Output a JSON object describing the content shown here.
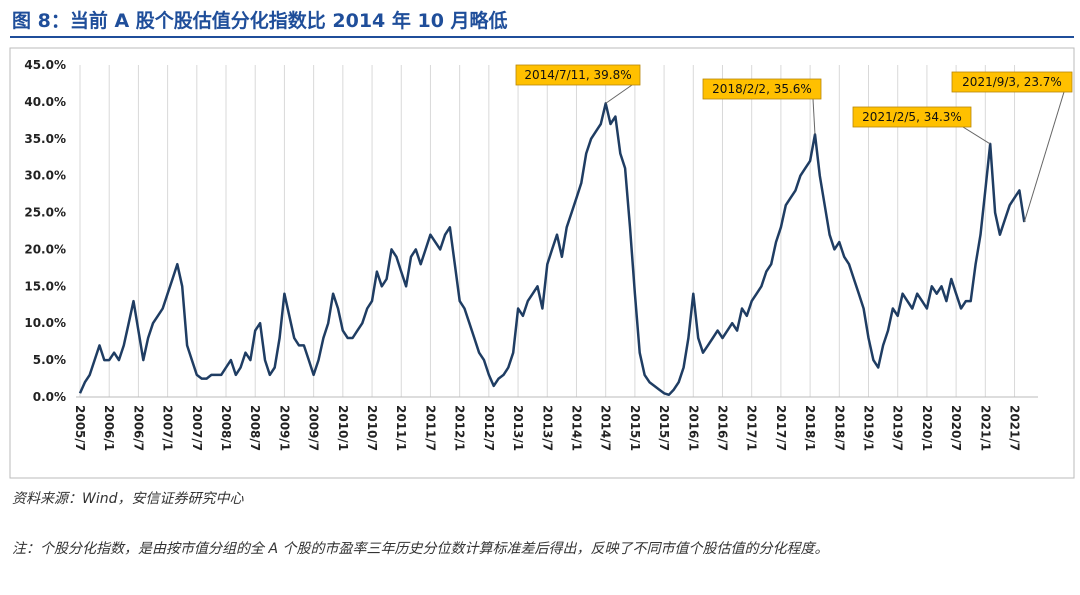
{
  "chart_data": {
    "type": "line",
    "title": "图 8：当前 A 股个股估值分化指数比 2014 年 10 月略低",
    "source": "资料来源：Wind，安信证券研究中心",
    "note": "注：个股分化指数，是由按市值分组的全 A 个股的市盈率三年历史分位数计算标准差后得出，反映了不同市值个股估值的分化程度。",
    "color": "#1f3d63",
    "grid": true,
    "ylim": [
      0,
      45
    ],
    "yticks": [
      {
        "value": 0,
        "label": "0.0%"
      },
      {
        "value": 5,
        "label": "5.0%"
      },
      {
        "value": 10,
        "label": "10.0%"
      },
      {
        "value": 15,
        "label": "15.0%"
      },
      {
        "value": 20,
        "label": "20.0%"
      },
      {
        "value": 25,
        "label": "25.0%"
      },
      {
        "value": 30,
        "label": "30.0%"
      },
      {
        "value": 35,
        "label": "35.0%"
      },
      {
        "value": 40,
        "label": "40.0%"
      },
      {
        "value": 45,
        "label": "45.0%"
      }
    ],
    "x": [
      "2005/7",
      null,
      null,
      null,
      null,
      null,
      "2006/1",
      null,
      null,
      null,
      null,
      null,
      "2006/7",
      null,
      null,
      null,
      null,
      null,
      "2007/1",
      null,
      null,
      null,
      null,
      null,
      "2007/7",
      null,
      null,
      null,
      null,
      null,
      "2008/1",
      null,
      null,
      null,
      null,
      null,
      "2008/7",
      null,
      null,
      null,
      null,
      null,
      "2009/1",
      null,
      null,
      null,
      null,
      null,
      "2009/7",
      null,
      null,
      null,
      null,
      null,
      "2010/1",
      null,
      null,
      null,
      null,
      null,
      "2010/7",
      null,
      null,
      null,
      null,
      null,
      "2011/1",
      null,
      null,
      null,
      null,
      null,
      "2011/7",
      null,
      null,
      null,
      null,
      null,
      "2012/1",
      null,
      null,
      null,
      null,
      null,
      "2012/7",
      null,
      null,
      null,
      null,
      null,
      "2013/1",
      null,
      null,
      null,
      null,
      null,
      "2013/7",
      null,
      null,
      null,
      null,
      null,
      "2014/1",
      null,
      null,
      null,
      null,
      null,
      "2014/7",
      null,
      null,
      null,
      null,
      null,
      "2015/1",
      null,
      null,
      null,
      null,
      null,
      "2015/7",
      null,
      null,
      null,
      null,
      null,
      "2016/1",
      null,
      null,
      null,
      null,
      null,
      "2016/7",
      null,
      null,
      null,
      null,
      null,
      "2017/1",
      null,
      null,
      null,
      null,
      null,
      "2017/7",
      null,
      null,
      null,
      null,
      null,
      "2018/1",
      null,
      null,
      null,
      null,
      null,
      "2018/7",
      null,
      null,
      null,
      null,
      null,
      "2019/1",
      null,
      null,
      null,
      null,
      null,
      "2019/7",
      null,
      null,
      null,
      null,
      null,
      "2020/1",
      null,
      null,
      null,
      null,
      null,
      "2020/7",
      null,
      null,
      null,
      null,
      null,
      "2021/1",
      null,
      null,
      null,
      null,
      null,
      "2021/7",
      null,
      null
    ],
    "values": [
      0.5,
      2,
      3,
      5,
      7,
      5,
      5,
      6,
      5,
      7,
      10,
      13,
      9,
      5,
      8,
      10,
      11,
      12,
      14,
      16,
      18,
      15,
      7,
      5,
      3,
      2.5,
      2.5,
      3,
      3,
      3,
      4,
      5,
      3,
      4,
      6,
      5,
      9,
      10,
      5,
      3,
      4,
      8,
      14,
      11,
      8,
      7,
      7,
      5,
      3,
      5,
      8,
      10,
      14,
      12,
      9,
      8,
      8,
      9,
      10,
      12,
      13,
      17,
      15,
      16,
      20,
      19,
      17,
      15,
      19,
      20,
      18,
      20,
      22,
      21,
      20,
      22,
      23,
      18,
      13,
      12,
      10,
      8,
      6,
      5,
      3,
      1.5,
      2.5,
      3,
      4,
      6,
      12,
      11,
      13,
      14,
      15,
      12,
      18,
      20,
      22,
      19,
      23,
      25,
      27,
      29,
      33,
      35,
      36,
      37,
      39.8,
      37,
      38,
      33,
      31,
      23,
      14,
      6,
      3,
      2,
      1.5,
      1,
      0.5,
      0.3,
      1,
      2,
      4,
      8,
      14,
      8,
      6,
      7,
      8,
      9,
      8,
      9,
      10,
      9,
      12,
      11,
      13,
      14,
      15,
      17,
      18,
      21,
      23,
      26,
      27,
      28,
      30,
      31,
      32,
      35.6,
      30,
      26,
      22,
      20,
      21,
      19,
      18,
      16,
      14,
      12,
      8,
      5,
      4,
      7,
      9,
      12,
      11,
      14,
      13,
      12,
      14,
      13,
      12,
      15,
      14,
      15,
      13,
      16,
      14,
      12,
      13,
      13,
      18,
      22,
      28,
      34.3,
      25,
      22,
      24,
      26,
      27,
      28,
      23.7
    ],
    "annotations": [
      {
        "label": "2014/7/11, 39.8%",
        "value": 39.8
      },
      {
        "label": "2018/2/2, 35.6%",
        "value": 35.6
      },
      {
        "label": "2021/2/5, 34.3%",
        "value": 34.3
      },
      {
        "label": "2021/9/3, 23.7%",
        "value": 23.7
      }
    ]
  }
}
